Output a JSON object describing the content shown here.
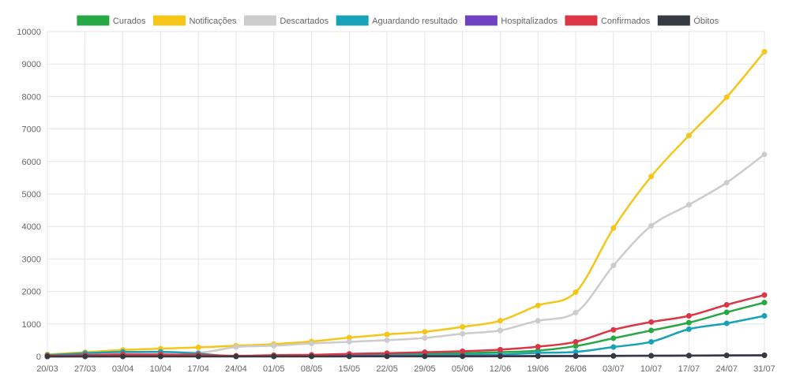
{
  "chart_data": {
    "type": "line",
    "title": "",
    "xlabel": "",
    "ylabel": "",
    "x": [
      "20/03",
      "27/03",
      "03/04",
      "10/04",
      "17/04",
      "24/04",
      "01/05",
      "08/05",
      "15/05",
      "22/05",
      "29/05",
      "05/06",
      "12/06",
      "19/06",
      "26/06",
      "03/07",
      "10/07",
      "17/07",
      "24/07",
      "31/07"
    ],
    "ylim": [
      0,
      10000
    ],
    "yticks": [
      0,
      1000,
      2000,
      3000,
      4000,
      5000,
      6000,
      7000,
      8000,
      9000,
      10000
    ],
    "grid": true,
    "legend_position": "top-center",
    "series": [
      {
        "name": "Curados",
        "color": "#28a745",
        "values": [
          0,
          5,
          10,
          10,
          10,
          10,
          20,
          30,
          45,
          60,
          80,
          100,
          130,
          180,
          320,
          560,
          800,
          1040,
          1360,
          1660
        ]
      },
      {
        "name": "Notificações",
        "color": "#f5c518",
        "values": [
          60,
          130,
          200,
          240,
          280,
          330,
          380,
          460,
          580,
          680,
          760,
          910,
          1100,
          1570,
          1980,
          3950,
          5540,
          6800,
          7980,
          9380
        ]
      },
      {
        "name": "Descartados",
        "color": "#cccccc",
        "values": [
          30,
          80,
          120,
          140,
          120,
          290,
          330,
          400,
          450,
          500,
          570,
          700,
          800,
          1100,
          1350,
          2800,
          4020,
          4670,
          5350,
          6220
        ]
      },
      {
        "name": "Aguardando resultado",
        "color": "#17a2b8",
        "values": [
          40,
          100,
          140,
          140,
          90,
          0,
          10,
          10,
          20,
          30,
          40,
          50,
          60,
          110,
          140,
          290,
          450,
          840,
          1020,
          1250
        ]
      },
      {
        "name": "Hospitalizados",
        "color": "#6f42c1",
        "values": [
          0,
          2,
          5,
          8,
          10,
          10,
          10,
          10,
          12,
          12,
          14,
          15,
          15,
          18,
          20,
          20,
          25,
          30,
          35,
          40
        ]
      },
      {
        "name": "Confirmados",
        "color": "#dc3545",
        "values": [
          20,
          40,
          60,
          60,
          50,
          20,
          40,
          50,
          80,
          100,
          130,
          160,
          210,
          300,
          450,
          820,
          1060,
          1250,
          1590,
          1890
        ]
      },
      {
        "name": "Óbitos",
        "color": "#343a40",
        "values": [
          0,
          0,
          0,
          0,
          0,
          0,
          0,
          1,
          2,
          2,
          3,
          4,
          5,
          7,
          10,
          15,
          20,
          25,
          30,
          35
        ]
      }
    ]
  }
}
